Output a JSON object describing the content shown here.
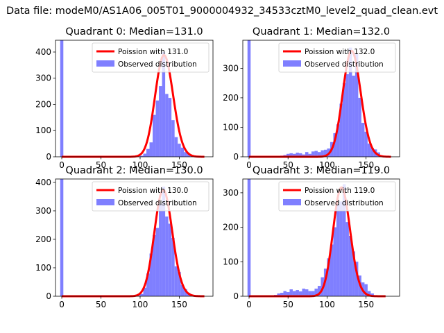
{
  "figure": {
    "suptitle": "Data file: modeM0/AS1A06_005T01_9000004932_34533cztM0_level2_quad_clean.evt"
  },
  "colors": {
    "bars": "#7f7fff",
    "poisson": "#ff0000",
    "axes": "#000000",
    "background": "#ffffff"
  },
  "chart_data": [
    {
      "type": "bar",
      "title": "Quadrant 0: Median=131.0",
      "median": 131.0,
      "poisson_label": "Poission with 131.0",
      "observed_label": "Observed distribution",
      "xlim": [
        -8,
        193
      ],
      "ylim": [
        0,
        445
      ],
      "xticks": [
        0,
        50,
        100,
        150
      ],
      "yticks": [
        0,
        100,
        200,
        300,
        400
      ],
      "bin_width": 4,
      "zero_bin": 445,
      "hist": [
        [
          74,
          1
        ],
        [
          94,
          1
        ],
        [
          98,
          2
        ],
        [
          102,
          4
        ],
        [
          106,
          12
        ],
        [
          110,
          30
        ],
        [
          114,
          55
        ],
        [
          118,
          160
        ],
        [
          122,
          215
        ],
        [
          126,
          270
        ],
        [
          130,
          400
        ],
        [
          134,
          240
        ],
        [
          138,
          225
        ],
        [
          142,
          140
        ],
        [
          146,
          75
        ],
        [
          150,
          50
        ],
        [
          154,
          35
        ],
        [
          158,
          18
        ],
        [
          162,
          10
        ],
        [
          166,
          6
        ],
        [
          170,
          3
        ],
        [
          174,
          1
        ],
        [
          178,
          1
        ]
      ],
      "poisson": {
        "mu": 131.0,
        "scale": 4,
        "x_start": 0,
        "x_end": 182
      }
    },
    {
      "type": "bar",
      "title": "Quadrant 1: Median=132.0",
      "median": 132.0,
      "poisson_label": "Poission with 132.0",
      "observed_label": "Observed distribution",
      "xlim": [
        -8,
        193
      ],
      "ylim": [
        0,
        395
      ],
      "xticks": [
        0,
        50,
        100,
        150
      ],
      "yticks": [
        0,
        100,
        200,
        300
      ],
      "bin_width": 4,
      "zero_bin": 395,
      "hist": [
        [
          42,
          4
        ],
        [
          46,
          6
        ],
        [
          50,
          10
        ],
        [
          54,
          12
        ],
        [
          58,
          10
        ],
        [
          62,
          14
        ],
        [
          66,
          12
        ],
        [
          70,
          8
        ],
        [
          74,
          16
        ],
        [
          78,
          10
        ],
        [
          82,
          18
        ],
        [
          86,
          20
        ],
        [
          90,
          16
        ],
        [
          94,
          22
        ],
        [
          98,
          24
        ],
        [
          102,
          28
        ],
        [
          106,
          50
        ],
        [
          110,
          80
        ],
        [
          114,
          110
        ],
        [
          118,
          180
        ],
        [
          122,
          250
        ],
        [
          126,
          280
        ],
        [
          130,
          370
        ],
        [
          134,
          275
        ],
        [
          138,
          350
        ],
        [
          142,
          200
        ],
        [
          146,
          115
        ],
        [
          150,
          85
        ],
        [
          154,
          45
        ],
        [
          158,
          30
        ],
        [
          162,
          25
        ],
        [
          166,
          15
        ],
        [
          170,
          5
        ]
      ],
      "poisson": {
        "mu": 132.0,
        "scale": 4,
        "x_start": 0,
        "x_end": 182
      }
    },
    {
      "type": "bar",
      "title": "Quadrant 2: Median=130.0",
      "median": 130.0,
      "poisson_label": "Poission with 130.0",
      "observed_label": "Observed distribution",
      "xlim": [
        -8,
        193
      ],
      "ylim": [
        0,
        412
      ],
      "xticks": [
        0,
        50,
        100,
        150
      ],
      "yticks": [
        0,
        100,
        200,
        300,
        400
      ],
      "bin_width": 4,
      "zero_bin": 412,
      "hist": [
        [
          74,
          1
        ],
        [
          94,
          1
        ],
        [
          98,
          3
        ],
        [
          102,
          8
        ],
        [
          106,
          30
        ],
        [
          110,
          80
        ],
        [
          114,
          150
        ],
        [
          118,
          215
        ],
        [
          122,
          240
        ],
        [
          126,
          325
        ],
        [
          130,
          385
        ],
        [
          134,
          280
        ],
        [
          138,
          255
        ],
        [
          142,
          205
        ],
        [
          146,
          105
        ],
        [
          150,
          85
        ],
        [
          154,
          40
        ],
        [
          158,
          25
        ],
        [
          162,
          12
        ],
        [
          166,
          5
        ],
        [
          170,
          2
        ]
      ],
      "poisson": {
        "mu": 130.0,
        "scale": 4,
        "x_start": 0,
        "x_end": 182
      }
    },
    {
      "type": "bar",
      "title": "Quadrant 3: Median=119.0",
      "median": 119.0,
      "poisson_label": "Poission with 119.0",
      "observed_label": "Observed distribution",
      "xlim": [
        -8,
        193
      ],
      "ylim": [
        0,
        340
      ],
      "xticks": [
        0,
        50,
        100,
        150
      ],
      "yticks": [
        0,
        100,
        200,
        300
      ],
      "bin_width": 4,
      "zero_bin": 340,
      "hist": [
        [
          34,
          4
        ],
        [
          38,
          8
        ],
        [
          42,
          10
        ],
        [
          46,
          15
        ],
        [
          50,
          12
        ],
        [
          54,
          20
        ],
        [
          58,
          15
        ],
        [
          62,
          18
        ],
        [
          66,
          14
        ],
        [
          70,
          22
        ],
        [
          74,
          20
        ],
        [
          78,
          15
        ],
        [
          82,
          15
        ],
        [
          86,
          22
        ],
        [
          90,
          30
        ],
        [
          94,
          55
        ],
        [
          98,
          80
        ],
        [
          102,
          110
        ],
        [
          106,
          150
        ],
        [
          110,
          200
        ],
        [
          114,
          265
        ],
        [
          118,
          275
        ],
        [
          122,
          325
        ],
        [
          126,
          215
        ],
        [
          130,
          175
        ],
        [
          134,
          130
        ],
        [
          138,
          100
        ],
        [
          142,
          60
        ],
        [
          146,
          40
        ],
        [
          150,
          35
        ],
        [
          154,
          15
        ],
        [
          158,
          8
        ],
        [
          162,
          3
        ]
      ],
      "poisson": {
        "mu": 119.0,
        "scale": 4,
        "x_start": 0,
        "x_end": 175
      }
    }
  ]
}
